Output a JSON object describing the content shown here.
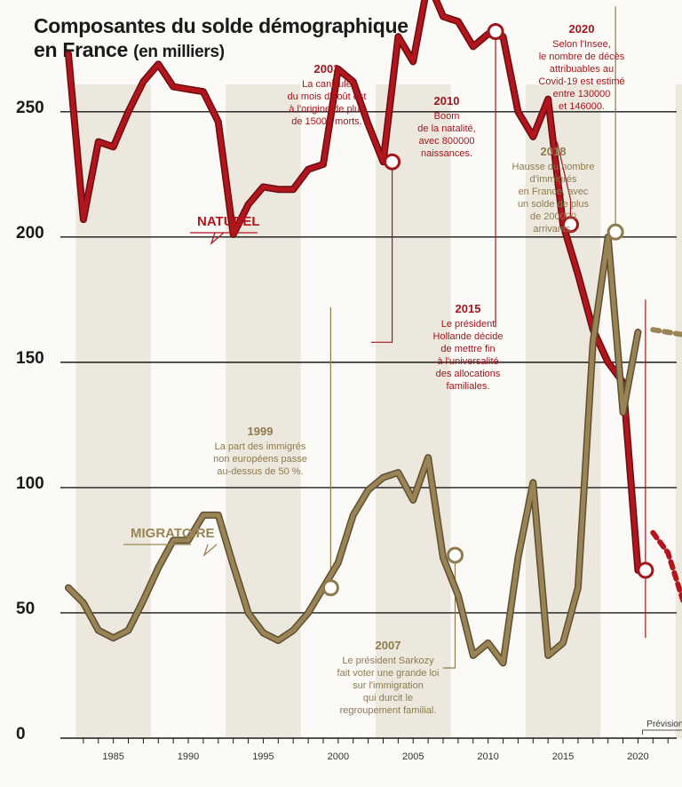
{
  "title": {
    "line1": "Composantes du solde démographique",
    "line2": "en France",
    "unit": "(en milliers)"
  },
  "colors": {
    "naturel": "#b3151c",
    "migratoire": "#9a8455",
    "annotation_red": "#a0161c",
    "annotation_olive": "#8f7a4d",
    "grid": "#1a1a1a",
    "band": "#ece8de"
  },
  "chart_data": {
    "type": "line",
    "title": "Composantes du solde démographique en France (en milliers)",
    "ylim": [
      0,
      350
    ],
    "yticks": [
      0,
      50,
      100,
      150,
      200,
      250,
      300,
      350
    ],
    "xlim": [
      1982,
      2024
    ],
    "xticks": [
      1985,
      1990,
      1995,
      2000,
      2005,
      2010,
      2015,
      2020
    ],
    "series": [
      {
        "name": "NATUREL",
        "x": [
          1982,
          1983,
          1984,
          1985,
          1986,
          1987,
          1988,
          1989,
          1990,
          1991,
          1992,
          1993,
          1994,
          1995,
          1996,
          1997,
          1998,
          1999,
          2000,
          2001,
          2002,
          2003,
          2004,
          2005,
          2006,
          2007,
          2008,
          2009,
          2010,
          2011,
          2012,
          2013,
          2014,
          2015,
          2016,
          2017,
          2018,
          2019,
          2020
        ],
        "values": [
          273,
          207,
          238,
          236,
          250,
          262,
          269,
          260,
          259,
          258,
          246,
          201,
          213,
          220,
          219,
          219,
          227,
          229,
          267,
          262,
          245,
          230,
          280,
          270,
          302,
          288,
          286,
          276,
          281,
          280,
          250,
          240,
          255,
          205,
          185,
          163,
          150,
          142,
          67
        ]
      },
      {
        "name": "MIGRATOIRE",
        "x": [
          1982,
          1983,
          1984,
          1985,
          1986,
          1987,
          1988,
          1989,
          1990,
          1991,
          1992,
          1993,
          1994,
          1995,
          1996,
          1997,
          1998,
          1999,
          2000,
          2001,
          2002,
          2003,
          2004,
          2005,
          2006,
          2007,
          2008,
          2009,
          2010,
          2011,
          2012,
          2013,
          2014,
          2015,
          2016,
          2017,
          2018,
          2019,
          2020
        ],
        "values": [
          60,
          54,
          43,
          40,
          43,
          55,
          68,
          79,
          79,
          89,
          89,
          69,
          50,
          42,
          39,
          43,
          50,
          60,
          70,
          89,
          99,
          104,
          106,
          95,
          112,
          72,
          57,
          33,
          38,
          30,
          72,
          102,
          33,
          38,
          60,
          158,
          200,
          130,
          162
        ]
      }
    ],
    "forecasts": [
      {
        "name": "NATUREL",
        "x": [
          2021,
          2022,
          2023
        ],
        "values": [
          82,
          74,
          55
        ]
      },
      {
        "name": "MIGRATOIRE",
        "x": [
          2021,
          2022,
          2023
        ],
        "values": [
          163,
          162,
          161
        ]
      }
    ],
    "series_labels": {
      "naturel": "NATUREL",
      "migratoire": "MIGRATOIRE"
    },
    "forecast_label": "Prévisions",
    "annotations": [
      {
        "id": "2003",
        "year": "2003",
        "series": "NATUREL",
        "point_x": 2003.6,
        "point_y": 230,
        "lines": [
          "La canicule",
          "du mois d'août est",
          "à l'origine de plus",
          "de 15000 morts."
        ]
      },
      {
        "id": "2010",
        "year": "2010",
        "series": "NATUREL",
        "point_x": 2010.5,
        "point_y": 282,
        "lines": [
          "Boom",
          "de la natalité,",
          "avec 800000",
          "naissances."
        ]
      },
      {
        "id": "2020",
        "year": "2020",
        "series": "NATUREL",
        "point_x": 2020.5,
        "point_y": 67,
        "lines": [
          "Selon l'Insee,",
          "le nombre de décès",
          "attribuables au",
          "Covid-19 est estimé",
          "entre 130000",
          "et 146000."
        ]
      },
      {
        "id": "2018",
        "year": "2018",
        "series": "MIGRATOIRE",
        "point_x": 2018.5,
        "point_y": 202,
        "lines": [
          "Hausse du nombre",
          "d'immigrés",
          "en France, avec",
          "un solde de plus",
          "de 200000",
          "arrivants."
        ]
      },
      {
        "id": "2015",
        "year": "2015",
        "series": "NATUREL",
        "point_x": 2015.5,
        "point_y": 205,
        "lines": [
          "Le président",
          "Hollande décide",
          "de mettre fin",
          "à l'universalité",
          "des allocations",
          "familiales."
        ]
      },
      {
        "id": "1999",
        "year": "1999",
        "series": "MIGRATOIRE",
        "point_x": 1999.5,
        "point_y": 60,
        "lines": [
          "La part des immigrés",
          "non européens passe",
          "au-dessus de 50 %."
        ]
      },
      {
        "id": "2007",
        "year": "2007",
        "series": "MIGRATOIRE",
        "point_x": 2007.8,
        "point_y": 73,
        "lines": [
          "Le président Sarkozy",
          "fait voter une grande loi",
          "sur l'immigration",
          "qui durcit le",
          "regroupement familial."
        ]
      }
    ]
  }
}
